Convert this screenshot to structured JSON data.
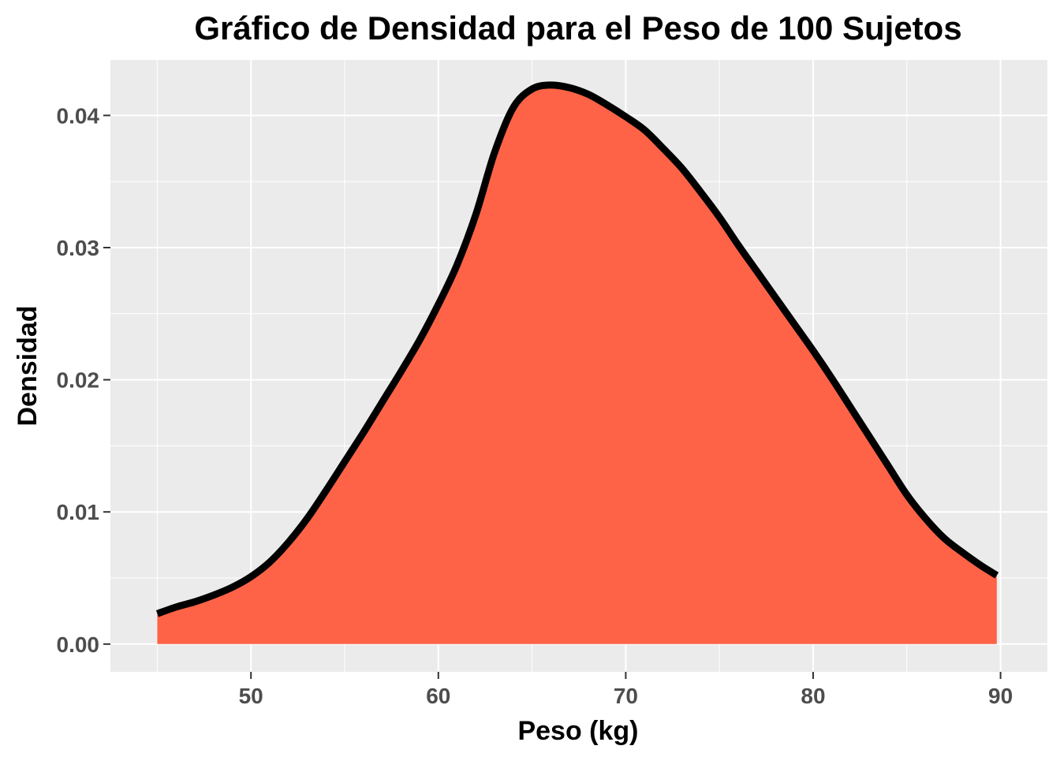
{
  "chart_data": {
    "type": "area",
    "title": "Gráfico de Densidad para el Peso de 100 Sujetos",
    "xlabel": "Peso (kg)",
    "ylabel": "Densidad",
    "xlim": [
      42.5,
      92.5
    ],
    "ylim": [
      -0.0021,
      0.0442
    ],
    "x_ticks": [
      50,
      60,
      70,
      80,
      90
    ],
    "x_tick_labels": [
      "50",
      "60",
      "70",
      "80",
      "90"
    ],
    "y_ticks": [
      0.0,
      0.01,
      0.02,
      0.03,
      0.04
    ],
    "y_tick_labels": [
      "0.00",
      "0.01",
      "0.02",
      "0.03",
      "0.04"
    ],
    "grid": true,
    "series": [
      {
        "x": [
          45,
          46,
          47,
          48,
          49,
          50,
          51,
          52,
          53,
          54,
          55,
          56,
          57,
          58,
          59,
          60,
          61,
          62,
          63,
          64,
          65,
          66,
          67,
          68,
          69,
          70,
          71,
          72,
          73,
          74,
          75,
          76,
          77,
          78,
          79,
          80,
          81,
          82,
          83,
          84,
          85,
          86,
          87,
          88,
          89,
          89.8
        ],
        "y": [
          0.0023,
          0.0028,
          0.0032,
          0.0037,
          0.0043,
          0.0051,
          0.0062,
          0.0077,
          0.0095,
          0.0116,
          0.0138,
          0.016,
          0.0183,
          0.0206,
          0.023,
          0.0257,
          0.0287,
          0.0325,
          0.0372,
          0.0406,
          0.042,
          0.0423,
          0.0421,
          0.0416,
          0.0408,
          0.0399,
          0.0389,
          0.0375,
          0.036,
          0.0342,
          0.0323,
          0.0302,
          0.0282,
          0.0262,
          0.0242,
          0.0222,
          0.0201,
          0.0179,
          0.0157,
          0.0135,
          0.0113,
          0.0095,
          0.008,
          0.0069,
          0.0059,
          0.0052
        ]
      }
    ],
    "colors": {
      "fill": "#FF6347",
      "line": "#000000",
      "panel_background": "#EBEBEB",
      "grid": "#FFFFFF",
      "tick_label": "#4D4D4D"
    }
  }
}
